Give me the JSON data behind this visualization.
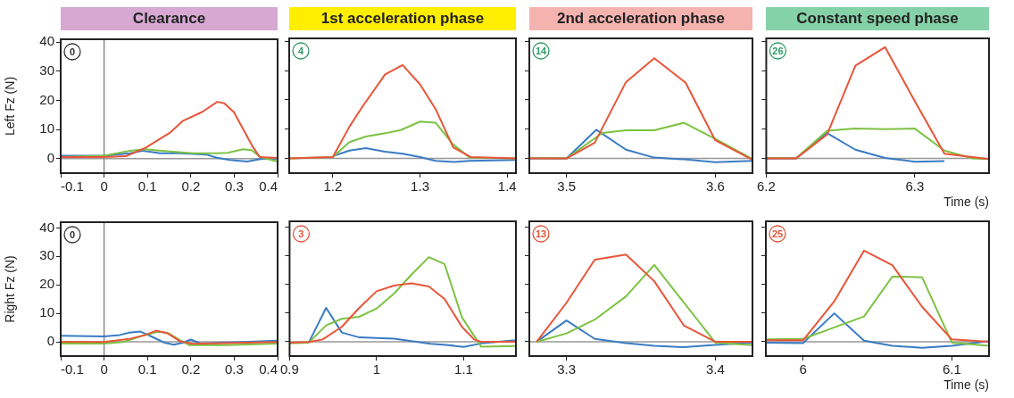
{
  "chart_data": [
    {
      "type": "line",
      "title": "Clearance",
      "ylabel": "Left Fz (N)",
      "xlim": [
        -0.1,
        0.4
      ],
      "xticks": [
        -0.1,
        0,
        0.1,
        0.2,
        0.3,
        0.4
      ],
      "ylim": [
        -5,
        41
      ],
      "yticks": [
        0,
        10,
        20,
        30,
        40
      ],
      "annotations": [
        "0"
      ],
      "ref_lines": [
        {
          "axis": "y",
          "value": 0,
          "color": "#999999"
        },
        {
          "axis": "x",
          "value": 0,
          "color": "#888888"
        }
      ],
      "series": [
        {
          "color": "#e8553a",
          "x": [
            -0.1,
            0,
            0.05,
            0.093,
            0.153,
            0.182,
            0.226,
            0.261,
            0.277,
            0.299,
            0.321,
            0.343,
            0.359,
            0.4
          ],
          "values": [
            0.5,
            0.5,
            0.8,
            3.5,
            9,
            13,
            16,
            19.5,
            19,
            16,
            10,
            4,
            0.5,
            0.2
          ]
        },
        {
          "color": "#7cc242",
          "x": [
            -0.1,
            0,
            0.06,
            0.095,
            0.145,
            0.205,
            0.26,
            0.285,
            0.32,
            0.34,
            0.36,
            0.4
          ],
          "values": [
            0.5,
            1,
            2.7,
            3.2,
            2.5,
            1.8,
            1.8,
            2,
            3.2,
            2.9,
            0.5,
            -1
          ]
        },
        {
          "color": "#3a7cc4",
          "x": [
            -0.1,
            0,
            0.06,
            0.09,
            0.13,
            0.175,
            0.235,
            0.26,
            0.29,
            0.33,
            0.36,
            0.4
          ],
          "values": [
            1,
            1,
            1.8,
            2.7,
            1.8,
            1.8,
            1.4,
            0.3,
            -0.5,
            -1,
            -0.2,
            0
          ]
        }
      ]
    },
    {
      "type": "line",
      "title": "1st acceleration phase",
      "tick_labels": "x",
      "xlim": [
        1.15,
        1.41
      ],
      "xticks": [
        1.2,
        1.3,
        1.4
      ],
      "ylim": [
        -5,
        41
      ],
      "yticks": [
        0,
        10,
        20,
        30,
        40
      ],
      "annotations": [
        "4"
      ],
      "ref_lines": [
        {
          "axis": "y",
          "value": 0,
          "color": "#999999"
        }
      ],
      "series": [
        {
          "color": "#e8553a",
          "x": [
            1.15,
            1.2,
            1.219,
            1.234,
            1.26,
            1.28,
            1.3,
            1.318,
            1.338,
            1.358,
            1.41
          ],
          "values": [
            0,
            0.5,
            10.8,
            17.7,
            28.7,
            31.9,
            25.3,
            16.8,
            3.8,
            0.5,
            0
          ]
        },
        {
          "color": "#7cc242",
          "x": [
            1.15,
            1.2,
            1.219,
            1.238,
            1.26,
            1.278,
            1.3,
            1.318,
            1.338,
            1.357,
            1.41
          ],
          "values": [
            0,
            0.5,
            5.6,
            7.5,
            8.6,
            9.7,
            12.6,
            12.2,
            4.8,
            0.3,
            0
          ]
        },
        {
          "color": "#3a7cc4",
          "x": [
            1.2,
            1.219,
            1.238,
            1.26,
            1.28,
            1.3,
            1.318,
            1.339,
            1.357,
            1.41
          ],
          "values": [
            0.8,
            2.7,
            3.5,
            2.3,
            1.6,
            0.5,
            -0.8,
            -1.2,
            -0.8,
            -0.5
          ]
        }
      ]
    },
    {
      "type": "line",
      "title": "2nd acceleration phase",
      "tick_labels": "x",
      "xlim": [
        3.475,
        3.625
      ],
      "xticks": [
        3.5,
        3.6
      ],
      "ylim": [
        -5,
        41
      ],
      "yticks": [
        0,
        10,
        20,
        30,
        40
      ],
      "annotations": [
        "14"
      ],
      "ref_lines": [
        {
          "axis": "y",
          "value": 0,
          "color": "#999999"
        }
      ],
      "series": [
        {
          "color": "#e8553a",
          "x": [
            3.475,
            3.5,
            3.519,
            3.54,
            3.559,
            3.58,
            3.6,
            3.625
          ],
          "values": [
            0,
            0,
            5.4,
            26.1,
            34.2,
            25.9,
            6.2,
            -0.5
          ]
        },
        {
          "color": "#7cc242",
          "x": [
            3.475,
            3.5,
            3.524,
            3.54,
            3.559,
            3.579,
            3.6,
            3.625
          ],
          "values": [
            0.2,
            0,
            8.7,
            9.6,
            9.6,
            12.2,
            6.7,
            -0.2
          ]
        },
        {
          "color": "#3a7cc4",
          "x": [
            3.475,
            3.5,
            3.52,
            3.54,
            3.559,
            3.579,
            3.6,
            3.625
          ],
          "values": [
            0,
            0,
            9.8,
            3,
            0.3,
            -0.3,
            -1.3,
            -0.8
          ]
        }
      ]
    },
    {
      "type": "line",
      "title": "Constant speed phase",
      "xlabel": "Time (s)",
      "tick_labels": "x",
      "xlim": [
        6.2,
        6.35
      ],
      "xticks": [
        6.2,
        6.3
      ],
      "ylim": [
        -5,
        41
      ],
      "yticks": [
        0,
        10,
        20,
        30,
        40
      ],
      "annotations": [
        "26"
      ],
      "ref_lines": [
        {
          "axis": "y",
          "value": 0,
          "color": "#999999"
        }
      ],
      "series": [
        {
          "color": "#e8553a",
          "x": [
            6.2,
            6.22,
            6.241,
            6.26,
            6.28,
            6.3,
            6.32,
            6.35
          ],
          "values": [
            0,
            0,
            8.2,
            31.7,
            38,
            19.6,
            1.6,
            -0.2
          ]
        },
        {
          "color": "#7cc242",
          "x": [
            6.2,
            6.22,
            6.241,
            6.26,
            6.28,
            6.3,
            6.32,
            6.339,
            6.35
          ],
          "values": [
            0.2,
            0,
            9.5,
            10.2,
            10,
            10.2,
            2.7,
            0,
            -0.2
          ]
        },
        {
          "color": "#3a7cc4",
          "x": [
            6.2,
            6.22,
            6.241,
            6.26,
            6.28,
            6.3,
            6.32
          ],
          "values": [
            0,
            0,
            8.7,
            3,
            0.2,
            -1.1,
            -0.9
          ]
        }
      ]
    },
    {
      "type": "line",
      "ylabel": "Right Fz (N)",
      "xlim": [
        -0.1,
        0.4
      ],
      "xticks": [
        -0.1,
        0,
        0.1,
        0.2,
        0.3,
        0.4
      ],
      "ylim": [
        -5,
        42
      ],
      "yticks": [
        0,
        10,
        20,
        30,
        40
      ],
      "annotations": [
        "0"
      ],
      "ref_lines": [
        {
          "axis": "y",
          "value": 0,
          "color": "#999999"
        },
        {
          "axis": "x",
          "value": 0,
          "color": "#888888"
        }
      ],
      "series": [
        {
          "color": "#e8553a",
          "x": [
            -0.1,
            0,
            0.058,
            0.095,
            0.12,
            0.146,
            0.175,
            0.204,
            0.4
          ],
          "values": [
            0,
            -0.1,
            1,
            2.4,
            3.9,
            3,
            0.2,
            -0.7,
            -0.1
          ]
        },
        {
          "color": "#7cc242",
          "x": [
            -0.1,
            0,
            0.044,
            0.088,
            0.124,
            0.146,
            0.175,
            0.197,
            0.277,
            0.4
          ],
          "values": [
            -0.6,
            -0.6,
            -0.1,
            2.1,
            3.5,
            3.2,
            0.6,
            -1.2,
            -1.2,
            -0.6
          ]
        },
        {
          "color": "#3a7cc4",
          "x": [
            -0.1,
            0,
            0.036,
            0.058,
            0.084,
            0.109,
            0.139,
            0.161,
            0.182,
            0.2,
            0.222,
            0.277,
            0.4
          ],
          "values": [
            2.1,
            1.9,
            2.4,
            3.2,
            3.6,
            1.9,
            -0.3,
            -1,
            -0.3,
            0.8,
            -0.6,
            -0.3,
            0.4
          ]
        }
      ]
    },
    {
      "type": "line",
      "tick_labels": "x",
      "xlim": [
        0.9,
        1.16
      ],
      "xticks": [
        0.9,
        1,
        1.1
      ],
      "ylim": [
        -5,
        42
      ],
      "yticks": [
        0,
        10,
        20,
        30,
        40
      ],
      "annotations": [
        "3"
      ],
      "ref_lines": [
        {
          "axis": "y",
          "value": 0,
          "color": "#999999"
        }
      ],
      "series": [
        {
          "color": "#e8553a",
          "x": [
            0.9,
            0.922,
            0.938,
            0.96,
            0.98,
            1,
            1.02,
            1.04,
            1.06,
            1.078,
            1.098,
            1.112,
            1.12,
            1.16
          ],
          "values": [
            -0.3,
            -0.1,
            0.8,
            5.2,
            11.8,
            17.6,
            19.6,
            20.4,
            19.3,
            14.9,
            5.2,
            0.8,
            0,
            0
          ]
        },
        {
          "color": "#7cc242",
          "x": [
            0.9,
            0.922,
            0.942,
            0.96,
            0.98,
            1,
            1.02,
            1.04,
            1.06,
            1.078,
            1.098,
            1.12,
            1.16
          ],
          "values": [
            -0.6,
            -0.3,
            5.7,
            8,
            8.7,
            11.6,
            16.8,
            23.4,
            29.5,
            27.1,
            8.5,
            -1.7,
            -1.5
          ]
        },
        {
          "color": "#3a7cc4",
          "x": [
            0.9,
            0.922,
            0.942,
            0.96,
            0.98,
            1,
            1.02,
            1.04,
            1.062,
            1.08,
            1.1,
            1.12,
            1.16
          ],
          "values": [
            -0.3,
            -0.3,
            11.8,
            3.2,
            1.5,
            1.3,
            1.1,
            0.2,
            -0.7,
            -1.1,
            -1.8,
            -0.6,
            0.5
          ]
        }
      ]
    },
    {
      "type": "line",
      "tick_labels": "x",
      "xlim": [
        3.275,
        3.425
      ],
      "xticks": [
        3.3,
        3.4
      ],
      "ylim": [
        -5,
        42
      ],
      "yticks": [
        0,
        10,
        20,
        30,
        40
      ],
      "annotations": [
        "13"
      ],
      "ref_lines": [
        {
          "axis": "y",
          "value": 0,
          "color": "#999999"
        }
      ],
      "series": [
        {
          "color": "#e8553a",
          "x": [
            3.28,
            3.3,
            3.319,
            3.34,
            3.359,
            3.379,
            3.4,
            3.425
          ],
          "values": [
            0,
            13.6,
            28.6,
            30.4,
            21.1,
            5.6,
            0,
            0
          ]
        },
        {
          "color": "#7cc242",
          "x": [
            3.28,
            3.3,
            3.319,
            3.34,
            3.359,
            3.379,
            3.4,
            3.425
          ],
          "values": [
            0,
            2.9,
            7.7,
            15.8,
            26.8,
            13.6,
            -0.3,
            -1.2
          ]
        },
        {
          "color": "#3a7cc4",
          "x": [
            3.28,
            3.3,
            3.319,
            3.34,
            3.359,
            3.379,
            3.4,
            3.425
          ],
          "values": [
            0,
            7.4,
            1,
            -0.5,
            -1.4,
            -1.9,
            -1.1,
            -0.3
          ]
        }
      ]
    },
    {
      "type": "line",
      "xlabel": "Time (s)",
      "tick_labels": "x",
      "xlim": [
        5.975,
        6.125
      ],
      "xticks": [
        6,
        6.1
      ],
      "ylim": [
        -5,
        42
      ],
      "yticks": [
        0,
        10,
        20,
        30,
        40
      ],
      "annotations": [
        "25"
      ],
      "ref_lines": [
        {
          "axis": "y",
          "value": 0,
          "color": "#999999"
        }
      ],
      "series": [
        {
          "color": "#e8553a",
          "x": [
            5.975,
            6,
            6.021,
            6.041,
            6.06,
            6.08,
            6.1,
            6.125
          ],
          "values": [
            0.5,
            0.5,
            14.1,
            31.8,
            26.7,
            12.2,
            0.8,
            0
          ]
        },
        {
          "color": "#7cc242",
          "x": [
            5.975,
            6,
            6.021,
            6.041,
            6.06,
            6.08,
            6.1,
            6.125
          ],
          "values": [
            0.8,
            1,
            5,
            8.8,
            22.7,
            22.5,
            -0.3,
            -1.4
          ]
        },
        {
          "color": "#3a7cc4",
          "x": [
            5.975,
            6,
            6.021,
            6.041,
            6.06,
            6.08,
            6.1,
            6.125
          ],
          "values": [
            -0.3,
            -0.5,
            9.9,
            0.4,
            -1.4,
            -2.1,
            -1.4,
            0.2
          ]
        }
      ]
    }
  ]
}
